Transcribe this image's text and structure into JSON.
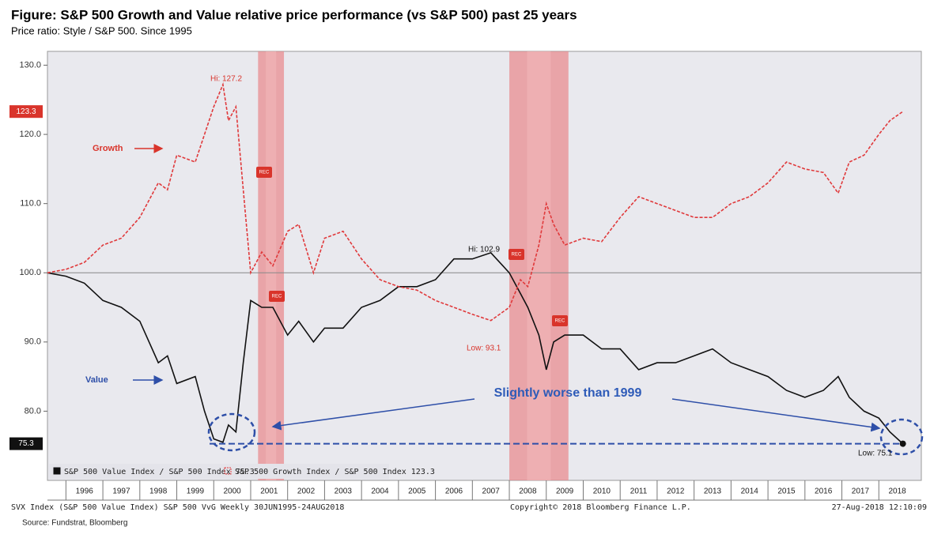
{
  "chart_data": {
    "type": "line",
    "title": "Figure: S&P 500 Growth and Value relative price performance (vs S&P 500) past 25 years",
    "subtitle": "Price ratio: Style / S&P 500.  Since 1995",
    "x": [
      1995.5,
      1996.0,
      1996.5,
      1997.0,
      1997.5,
      1998.0,
      1998.5,
      1998.75,
      1999.0,
      1999.5,
      1999.75,
      2000.0,
      2000.25,
      2000.4,
      2000.6,
      2000.8,
      2001.0,
      2001.3,
      2001.6,
      2002.0,
      2002.3,
      2002.7,
      2003.0,
      2003.5,
      2004.0,
      2004.5,
      2005.0,
      2005.5,
      2006.0,
      2006.5,
      2007.0,
      2007.5,
      2008.0,
      2008.3,
      2008.5,
      2008.8,
      2009.0,
      2009.2,
      2009.5,
      2010.0,
      2010.5,
      2011.0,
      2011.5,
      2012.0,
      2012.5,
      2013.0,
      2013.5,
      2014.0,
      2014.5,
      2015.0,
      2015.5,
      2016.0,
      2016.5,
      2016.9,
      2017.2,
      2017.6,
      2018.0,
      2018.3,
      2018.65
    ],
    "series": [
      {
        "name": "S&P 500 Value Index / S&P 500 Index",
        "color": "#111111",
        "dashed": false,
        "values": [
          100,
          99.5,
          98.5,
          96,
          95,
          93,
          87,
          88,
          84,
          85,
          80,
          76,
          75.5,
          78,
          77,
          87,
          96,
          95,
          95,
          91,
          93,
          90,
          92,
          92,
          95,
          96,
          98,
          98,
          99,
          102,
          102,
          102.9,
          100,
          97,
          95,
          91,
          86,
          90,
          91,
          91,
          89,
          89,
          86,
          87,
          87,
          88,
          89,
          87,
          86,
          85,
          83,
          82,
          83,
          85,
          82,
          80,
          79,
          77,
          75.3
        ]
      },
      {
        "name": "S&P 500 Growth Index / S&P 500 Index",
        "color": "#e0393b",
        "dashed": true,
        "values": [
          100,
          100.5,
          101.5,
          104,
          105,
          108,
          113,
          112,
          117,
          116,
          120,
          124,
          127.2,
          122,
          124,
          112,
          100,
          103,
          101,
          106,
          107,
          100,
          105,
          106,
          102,
          99,
          98,
          97.5,
          96,
          95,
          94,
          93.1,
          95,
          99,
          98,
          104,
          110,
          107,
          104,
          105,
          104.5,
          108,
          111,
          110,
          109,
          108,
          108,
          110,
          111,
          113,
          116,
          115,
          114.5,
          111.5,
          116,
          117,
          120,
          122,
          123.3
        ]
      }
    ],
    "recessions": [
      [
        2001.2,
        2001.9
      ],
      [
        2008.0,
        2009.6
      ]
    ],
    "rec_label": "REC",
    "hline": 100,
    "xlim": [
      1995.5,
      2019.15
    ],
    "xticks": [
      1996,
      1997,
      1998,
      1999,
      2000,
      2001,
      2002,
      2003,
      2004,
      2005,
      2006,
      2007,
      2008,
      2009,
      2010,
      2011,
      2012,
      2013,
      2014,
      2015,
      2016,
      2017,
      2018
    ],
    "ylim": [
      70,
      132
    ],
    "yticks": [
      {
        "value": 80,
        "label": "80.0"
      },
      {
        "value": 90,
        "label": "90.0"
      },
      {
        "value": 100,
        "label": "100.0"
      },
      {
        "value": 110,
        "label": "110.0"
      },
      {
        "value": 120,
        "label": "120.0"
      },
      {
        "value": 130,
        "label": "130.0"
      }
    ],
    "annotations": [
      "Hi: 127.2",
      "Low: 93.1",
      "Hi: 102.9",
      "Low: 75.1",
      "Growth",
      "Value",
      "Slightly worse than 1999"
    ],
    "footer": [
      "SVX Index (S&P 500 Value Index) S&P 500 VvG  Weekly 30JUN1995-24AUG2018",
      "Copyright© 2018 Bloomberg Finance L.P.",
      "27-Aug-2018 12:10:09"
    ],
    "source": "Source: Fundstrat, Bloomberg"
  }
}
